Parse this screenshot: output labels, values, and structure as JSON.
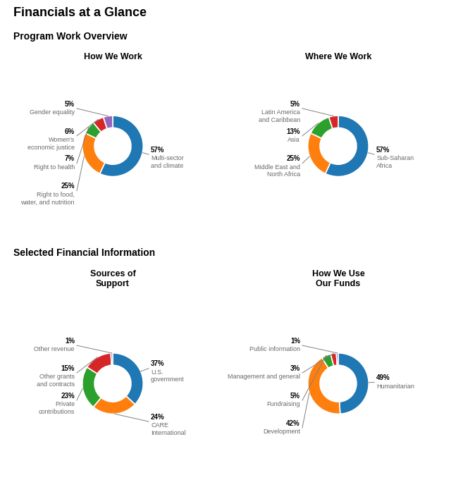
{
  "title": "Financials at a Glance",
  "annotations": [
    "Program Work Overview",
    "Selected Financial Information"
  ],
  "chart_data": [
    {
      "type": "pie",
      "title": "How We Work",
      "categories": [
        "Multi-sector\nand climate",
        "Right to food,\nwater, and nutrition",
        "Right to health",
        "Women's\neconomic justice",
        "Gender equality"
      ],
      "values": [
        57,
        25,
        7,
        6,
        5
      ],
      "value_labels": [
        "57%",
        "25%",
        "7%",
        "6%",
        "5%"
      ],
      "data_labels": true
    },
    {
      "type": "pie",
      "title": "Where We Work",
      "categories": [
        "Sub-Saharan\nAfrica",
        "Middle East and\nNorth Africa",
        "Asia",
        "Latin America\nand Caribbean"
      ],
      "values": [
        57,
        25,
        13,
        5
      ],
      "value_labels": [
        "57%",
        "25%",
        "13%",
        "5%"
      ],
      "data_labels": true
    },
    {
      "type": "pie",
      "title": "Sources of\nSupport",
      "categories": [
        "U.S.\ngovernment",
        "CARE\nInternational",
        "Private\ncontributions",
        "Other grants\nand contracts",
        "Other revenue"
      ],
      "values": [
        37,
        24,
        23,
        15,
        1
      ],
      "value_labels": [
        "37%",
        "24%",
        "23%",
        "15%",
        "1%"
      ],
      "data_labels": true
    },
    {
      "type": "pie",
      "title": "How We Use\nOur Funds",
      "categories": [
        "Humanitarian",
        "Development",
        "Fundraising",
        "Management and general",
        "Public information"
      ],
      "values": [
        49,
        42,
        5,
        3,
        1
      ],
      "value_labels": [
        "49%",
        "42%",
        "5%",
        "3%",
        "1%"
      ],
      "data_labels": true
    }
  ]
}
